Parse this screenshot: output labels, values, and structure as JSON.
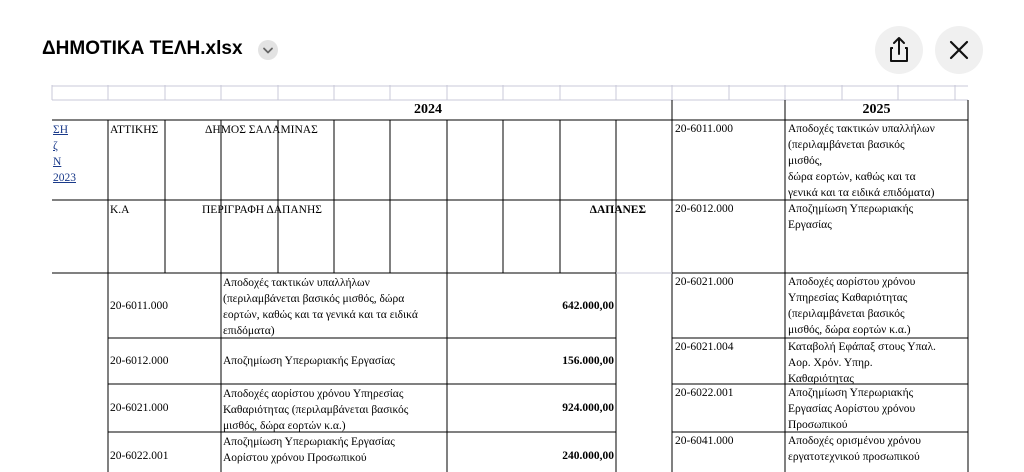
{
  "header": {
    "title": "ΔΗΜΟΤΙΚΑ ΤΕΛΗ.xlsx"
  },
  "sheet": {
    "left_edge_lines": [
      "ΣΗ",
      "ζ",
      "Ν",
      "2023"
    ],
    "year_left": "2024",
    "year_right": "2025",
    "region": "ΑΤΤΙΚΗΣ",
    "municipality": "ΔΗΜΟΣ ΣΑΛΑΜΙΝΑΣ",
    "col_code": "Κ.Α",
    "col_desc": "ΠΕΡΙΓΡΑΦΗ ΔΑΠΑΝΗΣ",
    "col_amount": "ΔΑΠΑΝΕΣ",
    "rows_left": [
      {
        "code": "20-6011.000",
        "desc": [
          "Αποδοχές τακτικών υπαλλήλων",
          "(περιλαμβάνεται βασικός μισθός, δώρα",
          "εορτών, καθώς και τα γενικά και τα ειδικά",
          "επιδόματα)"
        ],
        "amount": "642.000,00"
      },
      {
        "code": "20-6012.000",
        "desc": [
          "Αποζημίωση Υπερωριακής Εργασίας"
        ],
        "amount": "156.000,00"
      },
      {
        "code": "20-6021.000",
        "desc": [
          "Αποδοχές αορίστου χρόνου Υπηρεσίας",
          "Καθαριότητας (περιλαμβάνεται βασικός",
          "μισθός, δώρα εορτών κ.α.)"
        ],
        "amount": "924.000,00"
      },
      {
        "code": "20-6022.001",
        "desc": [
          "Αποζημίωση Υπερωριακής Εργασίας",
          "Αορίστου χρόνου Προσωπικού"
        ],
        "amount": "240.000,00"
      }
    ],
    "rows_right": [
      {
        "code": "20-6011.000",
        "desc": [
          "Αποδοχές τακτικών υπαλλήλων",
          "(περιλαμβάνεται βασικός",
          "μισθός,",
          "δώρα εορτών, καθώς και τα",
          "γενικά και τα ειδικά επιδόματα)"
        ]
      },
      {
        "code": "20-6012.000",
        "desc": [
          "Αποζημίωση Υπερωριακής",
          "Εργασίας"
        ]
      },
      {
        "code": "20-6021.000",
        "desc": [
          "Αποδοχές αορίστου χρόνου",
          "Υπηρεσίας Καθαριότητας",
          "(περιλαμβάνεται βασικός",
          "μισθός, δώρα εορτών κ.α.)"
        ]
      },
      {
        "code": "20-6021.004",
        "desc": [
          "Καταβολή Εφάπαξ στους Υπαλ.",
          "Αορ. Χρόν. Υπηρ.",
          "Καθαριότητας"
        ]
      },
      {
        "code": "20-6022.001",
        "desc": [
          "Αποζημίωση Υπερωριακής",
          "Εργασίας Αορίστου χρόνου",
          "Προσωπικού"
        ]
      },
      {
        "code": "20-6041.000",
        "desc": [
          "Αποδοχές ορισμένου χρόνου",
          "εργατοτεχνικού προσωπικού"
        ]
      }
    ]
  }
}
